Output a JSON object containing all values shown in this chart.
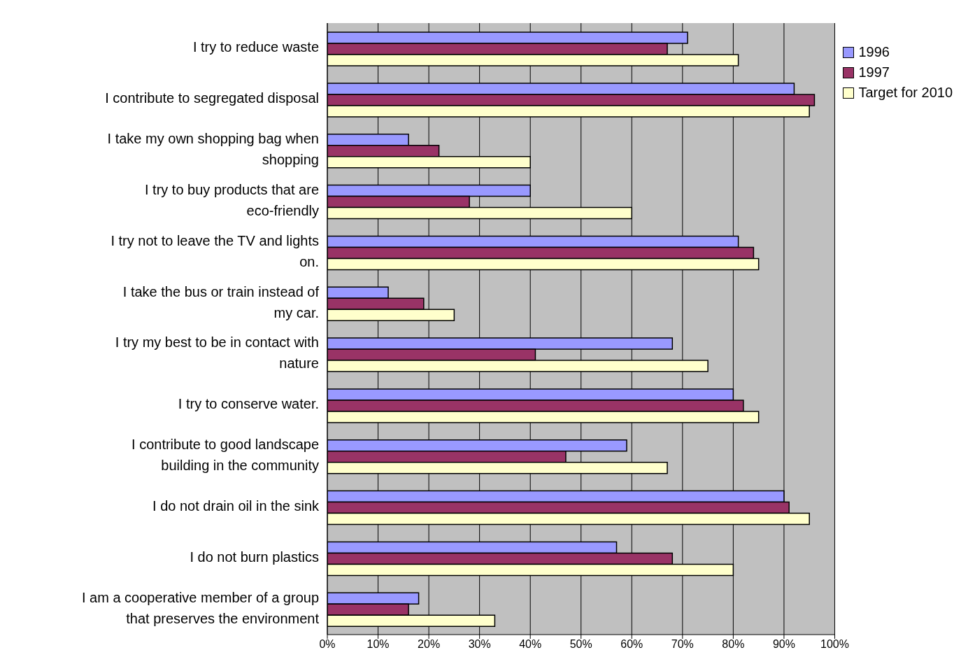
{
  "chart_data": {
    "type": "bar",
    "orientation": "horizontal",
    "categories": [
      "I try to reduce waste",
      "I contribute to segregated disposal",
      "I take my own shopping bag when shopping",
      "I try to buy products that are eco-friendly",
      "I try not to leave the TV and lights on.",
      "I take the bus or train instead of my car.",
      "I try my best to be in contact with nature",
      "I try to conserve water.",
      "I contribute to good landscape building in the community",
      "I do not drain oil in the sink",
      "I do not burn plastics",
      "I am a cooperative member of a group that preserves the environment"
    ],
    "series": [
      {
        "name": "1996",
        "color": "#9999ff",
        "values": [
          71,
          92,
          16,
          40,
          81,
          12,
          68,
          80,
          59,
          90,
          57,
          18
        ]
      },
      {
        "name": "1997",
        "color": "#993366",
        "values": [
          67,
          96,
          22,
          28,
          84,
          19,
          41,
          82,
          47,
          91,
          68,
          16
        ]
      },
      {
        "name": "Target for 2010",
        "color": "#ffffcc",
        "values": [
          81,
          95,
          40,
          60,
          85,
          25,
          75,
          85,
          67,
          95,
          80,
          33
        ]
      }
    ],
    "xlim": [
      0,
      100
    ],
    "xticks": [
      {
        "value": 0,
        "label": "0%"
      },
      {
        "value": 10,
        "label": "10%"
      },
      {
        "value": 20,
        "label": "20%"
      },
      {
        "value": 30,
        "label": "30%"
      },
      {
        "value": 40,
        "label": "40%"
      },
      {
        "value": 50,
        "label": "50%"
      },
      {
        "value": 60,
        "label": "60%"
      },
      {
        "value": 70,
        "label": "70%"
      },
      {
        "value": 80,
        "label": "80%"
      },
      {
        "value": 90,
        "label": "90%"
      },
      {
        "value": 100,
        "label": "100%"
      }
    ],
    "grid": "x",
    "legend": "top right"
  }
}
